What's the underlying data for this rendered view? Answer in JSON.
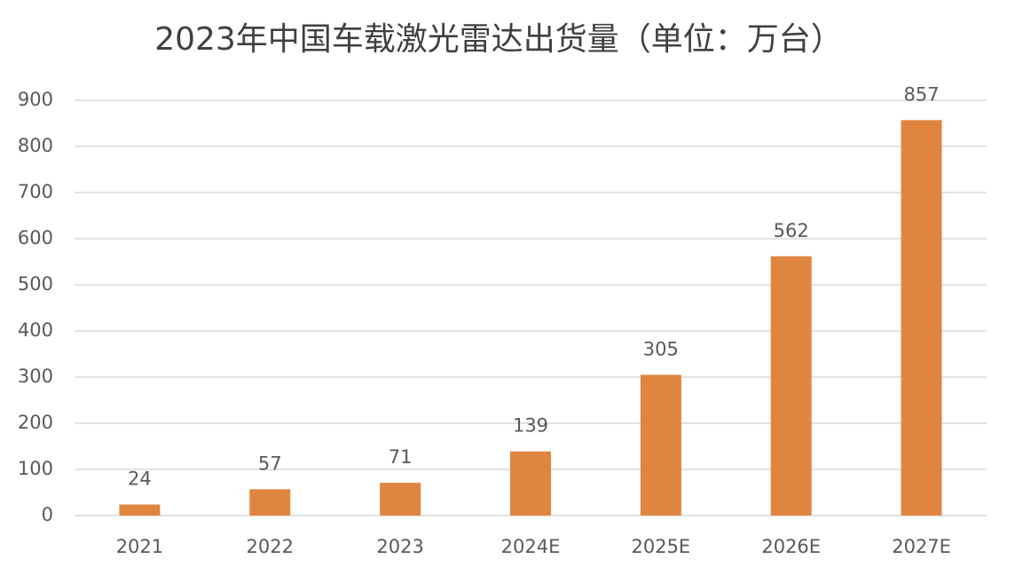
{
  "chart_data": {
    "type": "bar",
    "title": "2023年中国车载激光雷达出货量（单位：万台）",
    "categories": [
      "2021",
      "2022",
      "2023",
      "2024E",
      "2025E",
      "2026E",
      "2027E"
    ],
    "values": [
      24,
      57,
      71,
      139,
      305,
      562,
      857
    ],
    "color": "#e08540",
    "ylim": [
      0,
      900
    ],
    "yticks": [
      0,
      100,
      200,
      300,
      400,
      500,
      600,
      700,
      800,
      900
    ],
    "grid": true
  }
}
